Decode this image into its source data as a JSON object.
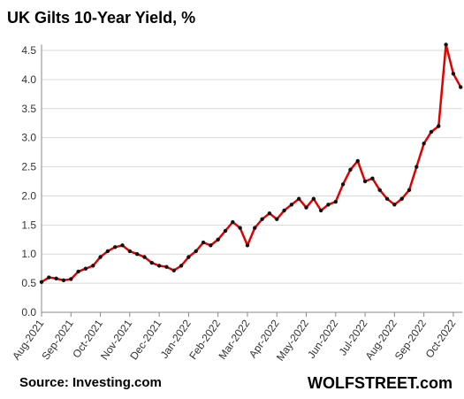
{
  "chart_data": {
    "type": "line",
    "title": "UK Gilts 10-Year Yield, %",
    "source": "Source: Investing.com",
    "brand": "WOLFSTREET.com",
    "categories": [
      "Aug-2021",
      null,
      null,
      null,
      "Sep-2021",
      null,
      null,
      null,
      "Oct-2021",
      null,
      null,
      null,
      "Nov-2021",
      null,
      null,
      null,
      "Dec-2021",
      null,
      null,
      null,
      "Jan-2022",
      null,
      null,
      null,
      "Feb-2022",
      null,
      null,
      null,
      "Mar-2022",
      null,
      null,
      null,
      "Apr-2022",
      null,
      null,
      null,
      "May-2022",
      null,
      null,
      null,
      "Jun-2022",
      null,
      null,
      null,
      "Jul-2022",
      null,
      null,
      null,
      "Aug-2022",
      null,
      null,
      null,
      "Sep-2022",
      null,
      null,
      null,
      "Oct-2022",
      null
    ],
    "series": [
      {
        "name": "UK Gilts 10-Year Yield",
        "color": "#e00000",
        "marker_color": "#111111",
        "values": [
          0.52,
          0.6,
          0.58,
          0.55,
          0.57,
          0.7,
          0.75,
          0.8,
          0.95,
          1.05,
          1.12,
          1.15,
          1.05,
          1.0,
          0.95,
          0.85,
          0.8,
          0.78,
          0.72,
          0.8,
          0.95,
          1.05,
          1.2,
          1.15,
          1.25,
          1.4,
          1.55,
          1.45,
          1.15,
          1.45,
          1.6,
          1.7,
          1.6,
          1.75,
          1.85,
          1.95,
          1.8,
          1.95,
          1.75,
          1.85,
          1.9,
          2.2,
          2.45,
          2.6,
          2.25,
          2.3,
          2.1,
          1.95,
          1.85,
          1.95,
          2.1,
          2.5,
          2.9,
          3.1,
          3.2,
          4.6,
          4.1,
          3.87
        ]
      }
    ],
    "ylim": [
      0,
      4.6
    ],
    "yticks": [
      {
        "value": 0,
        "label": "0.0"
      },
      {
        "value": 0.5,
        "label": "0.5"
      },
      {
        "value": 1,
        "label": "1.0"
      },
      {
        "value": 1.5,
        "label": "1.5"
      },
      {
        "value": 2,
        "label": "2.0"
      },
      {
        "value": 2.5,
        "label": "2.5"
      },
      {
        "value": 3,
        "label": "3.0"
      },
      {
        "value": 3.5,
        "label": "3.5"
      },
      {
        "value": 4,
        "label": "4.0"
      },
      {
        "value": 4.5,
        "label": "4.5"
      }
    ],
    "grid": true
  }
}
